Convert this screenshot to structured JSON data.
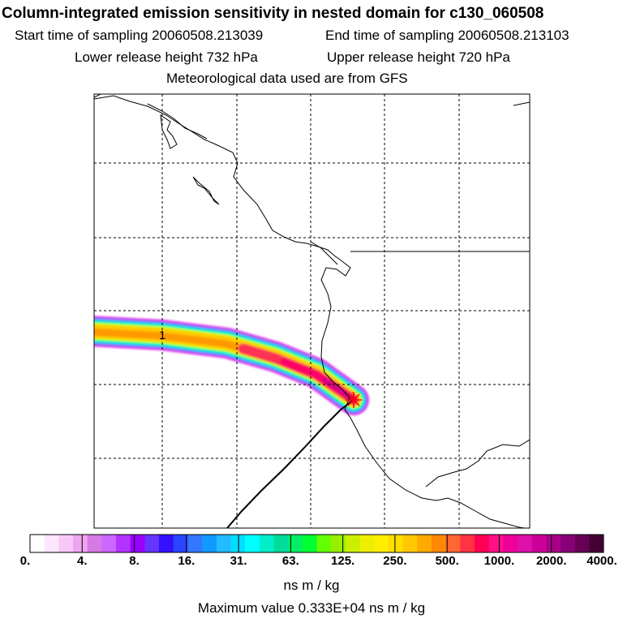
{
  "header": {
    "title": "Column-integrated emission sensitivity in nested domain for c130_060508",
    "start_label": "Start time of sampling 20060508.213039",
    "end_label": "End time of sampling 20060508.213103",
    "lower_label": "Lower release height  732 hPa",
    "upper_label": "Upper release height  720 hPa",
    "met_label": "Meteorological data used are from GFS"
  },
  "map": {
    "plume_label": "1",
    "release_marker": "star"
  },
  "legend": {
    "ticks": [
      "0.",
      "4.",
      "8.",
      "16.",
      "31.",
      "63.",
      "125.",
      "250.",
      "500.",
      "1000.",
      "2000.",
      "4000."
    ],
    "colors": [
      "#ffffff",
      "#ffe6ff",
      "#f7c8f7",
      "#eea4ee",
      "#d77ae6",
      "#cc66ff",
      "#b233ff",
      "#9900ff",
      "#6633ff",
      "#3311ff",
      "#2a44ff",
      "#3377ff",
      "#1199ff",
      "#22bbff",
      "#00ddff",
      "#00ffff",
      "#00eecc",
      "#00dd99",
      "#00ee66",
      "#00ff33",
      "#66ff00",
      "#99ee00",
      "#ccee00",
      "#eeee00",
      "#ffee00",
      "#ffdd00",
      "#ffc800",
      "#ffaa00",
      "#ff8800",
      "#ff6633",
      "#ff3344",
      "#ff0055",
      "#ff1188",
      "#ee0099",
      "#dd11aa",
      "#cc0099",
      "#aa0088",
      "#880077",
      "#660055",
      "#440033"
    ],
    "units": "ns m / kg",
    "max_value": "Maximum value  0.333E+04 ns m / kg"
  }
}
